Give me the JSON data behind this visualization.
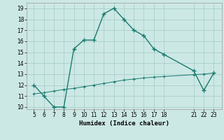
{
  "xlabel": "Humidex (Indice chaleur)",
  "x_main": [
    5,
    6,
    7,
    8,
    9,
    10,
    11,
    12,
    13,
    14,
    15,
    16,
    17,
    18,
    21,
    22,
    23
  ],
  "y_main": [
    12,
    11,
    10,
    10,
    15.3,
    16.1,
    16.1,
    18.5,
    19,
    18,
    17,
    16.5,
    15.3,
    14.8,
    13.3,
    11.5,
    13.1
  ],
  "x_trend": [
    5,
    6,
    7,
    8,
    9,
    10,
    11,
    12,
    13,
    14,
    15,
    16,
    17,
    18,
    21,
    22,
    23
  ],
  "y_trend": [
    11.2,
    11.3,
    11.45,
    11.6,
    11.7,
    11.85,
    12.0,
    12.15,
    12.3,
    12.45,
    12.55,
    12.65,
    12.72,
    12.78,
    12.95,
    13.0,
    13.1
  ],
  "line_color": "#1a7a6e",
  "bg_color": "#cce8e5",
  "grid_color": "#aacfcc",
  "ylim": [
    9.8,
    19.5
  ],
  "yticks": [
    10,
    11,
    12,
    13,
    14,
    15,
    16,
    17,
    18,
    19
  ],
  "xticks": [
    5,
    6,
    7,
    8,
    9,
    10,
    11,
    12,
    13,
    14,
    15,
    16,
    17,
    18,
    21,
    22,
    23
  ],
  "marker": "+",
  "marker_size": 4,
  "linewidth": 1.0
}
